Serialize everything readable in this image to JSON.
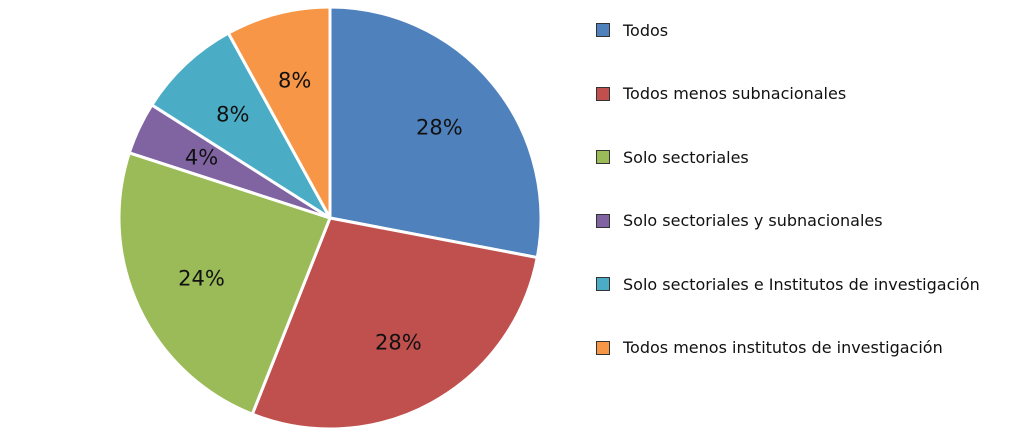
{
  "chart_data": {
    "type": "pie",
    "categories": [
      "Todos",
      "Todos menos subnacionales",
      "Solo sectoriales",
      "Solo sectoriales y subnacionales",
      "Solo sectoriales e Institutos de investigación",
      "Todos menos institutos de investigación"
    ],
    "values": [
      28,
      28,
      24,
      4,
      8,
      8
    ],
    "value_labels": [
      "28%",
      "28%",
      "24%",
      "4%",
      "8%",
      "8%"
    ],
    "colors": [
      "#4F81BD",
      "#C0504D",
      "#9BBB59",
      "#8064A2",
      "#4BACC6",
      "#F79646"
    ],
    "start_angle": "12 o'clock",
    "direction": "clockwise",
    "legend_position": "right",
    "title": ""
  }
}
